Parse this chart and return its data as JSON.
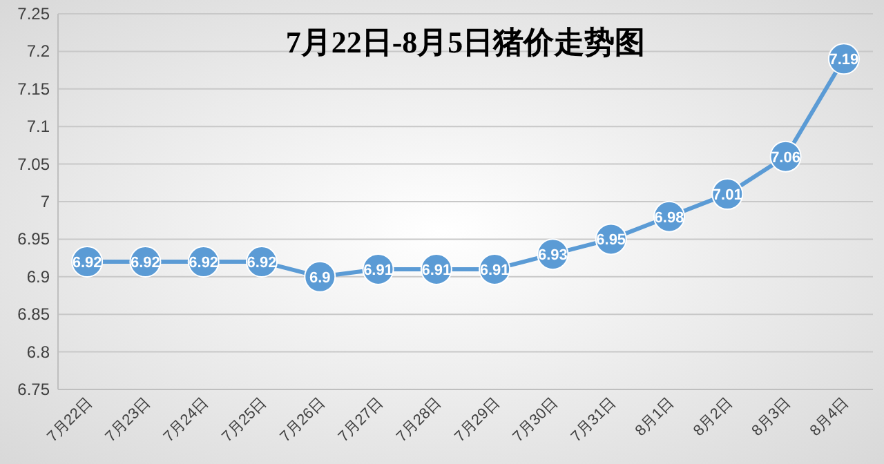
{
  "chart_data": {
    "type": "line",
    "title": "7月22日-8月5日猪价走势图",
    "categories": [
      "7月22日",
      "7月23日",
      "7月24日",
      "7月25日",
      "7月26日",
      "7月27日",
      "7月28日",
      "7月29日",
      "7月30日",
      "7月31日",
      "8月1日",
      "8月2日",
      "8月3日",
      "8月4日"
    ],
    "values": [
      6.92,
      6.92,
      6.92,
      6.92,
      6.9,
      6.91,
      6.91,
      6.91,
      6.93,
      6.95,
      6.98,
      7.01,
      7.06,
      7.19
    ],
    "color": "#5b9bd5",
    "ylim": [
      6.75,
      7.25
    ],
    "yticks": [
      6.75,
      6.8,
      6.85,
      6.9,
      6.95,
      7,
      7.05,
      7.1,
      7.15,
      7.2,
      7.25
    ],
    "grid": "y",
    "marker": "circle",
    "data_labels": true,
    "line_style": "solid"
  }
}
